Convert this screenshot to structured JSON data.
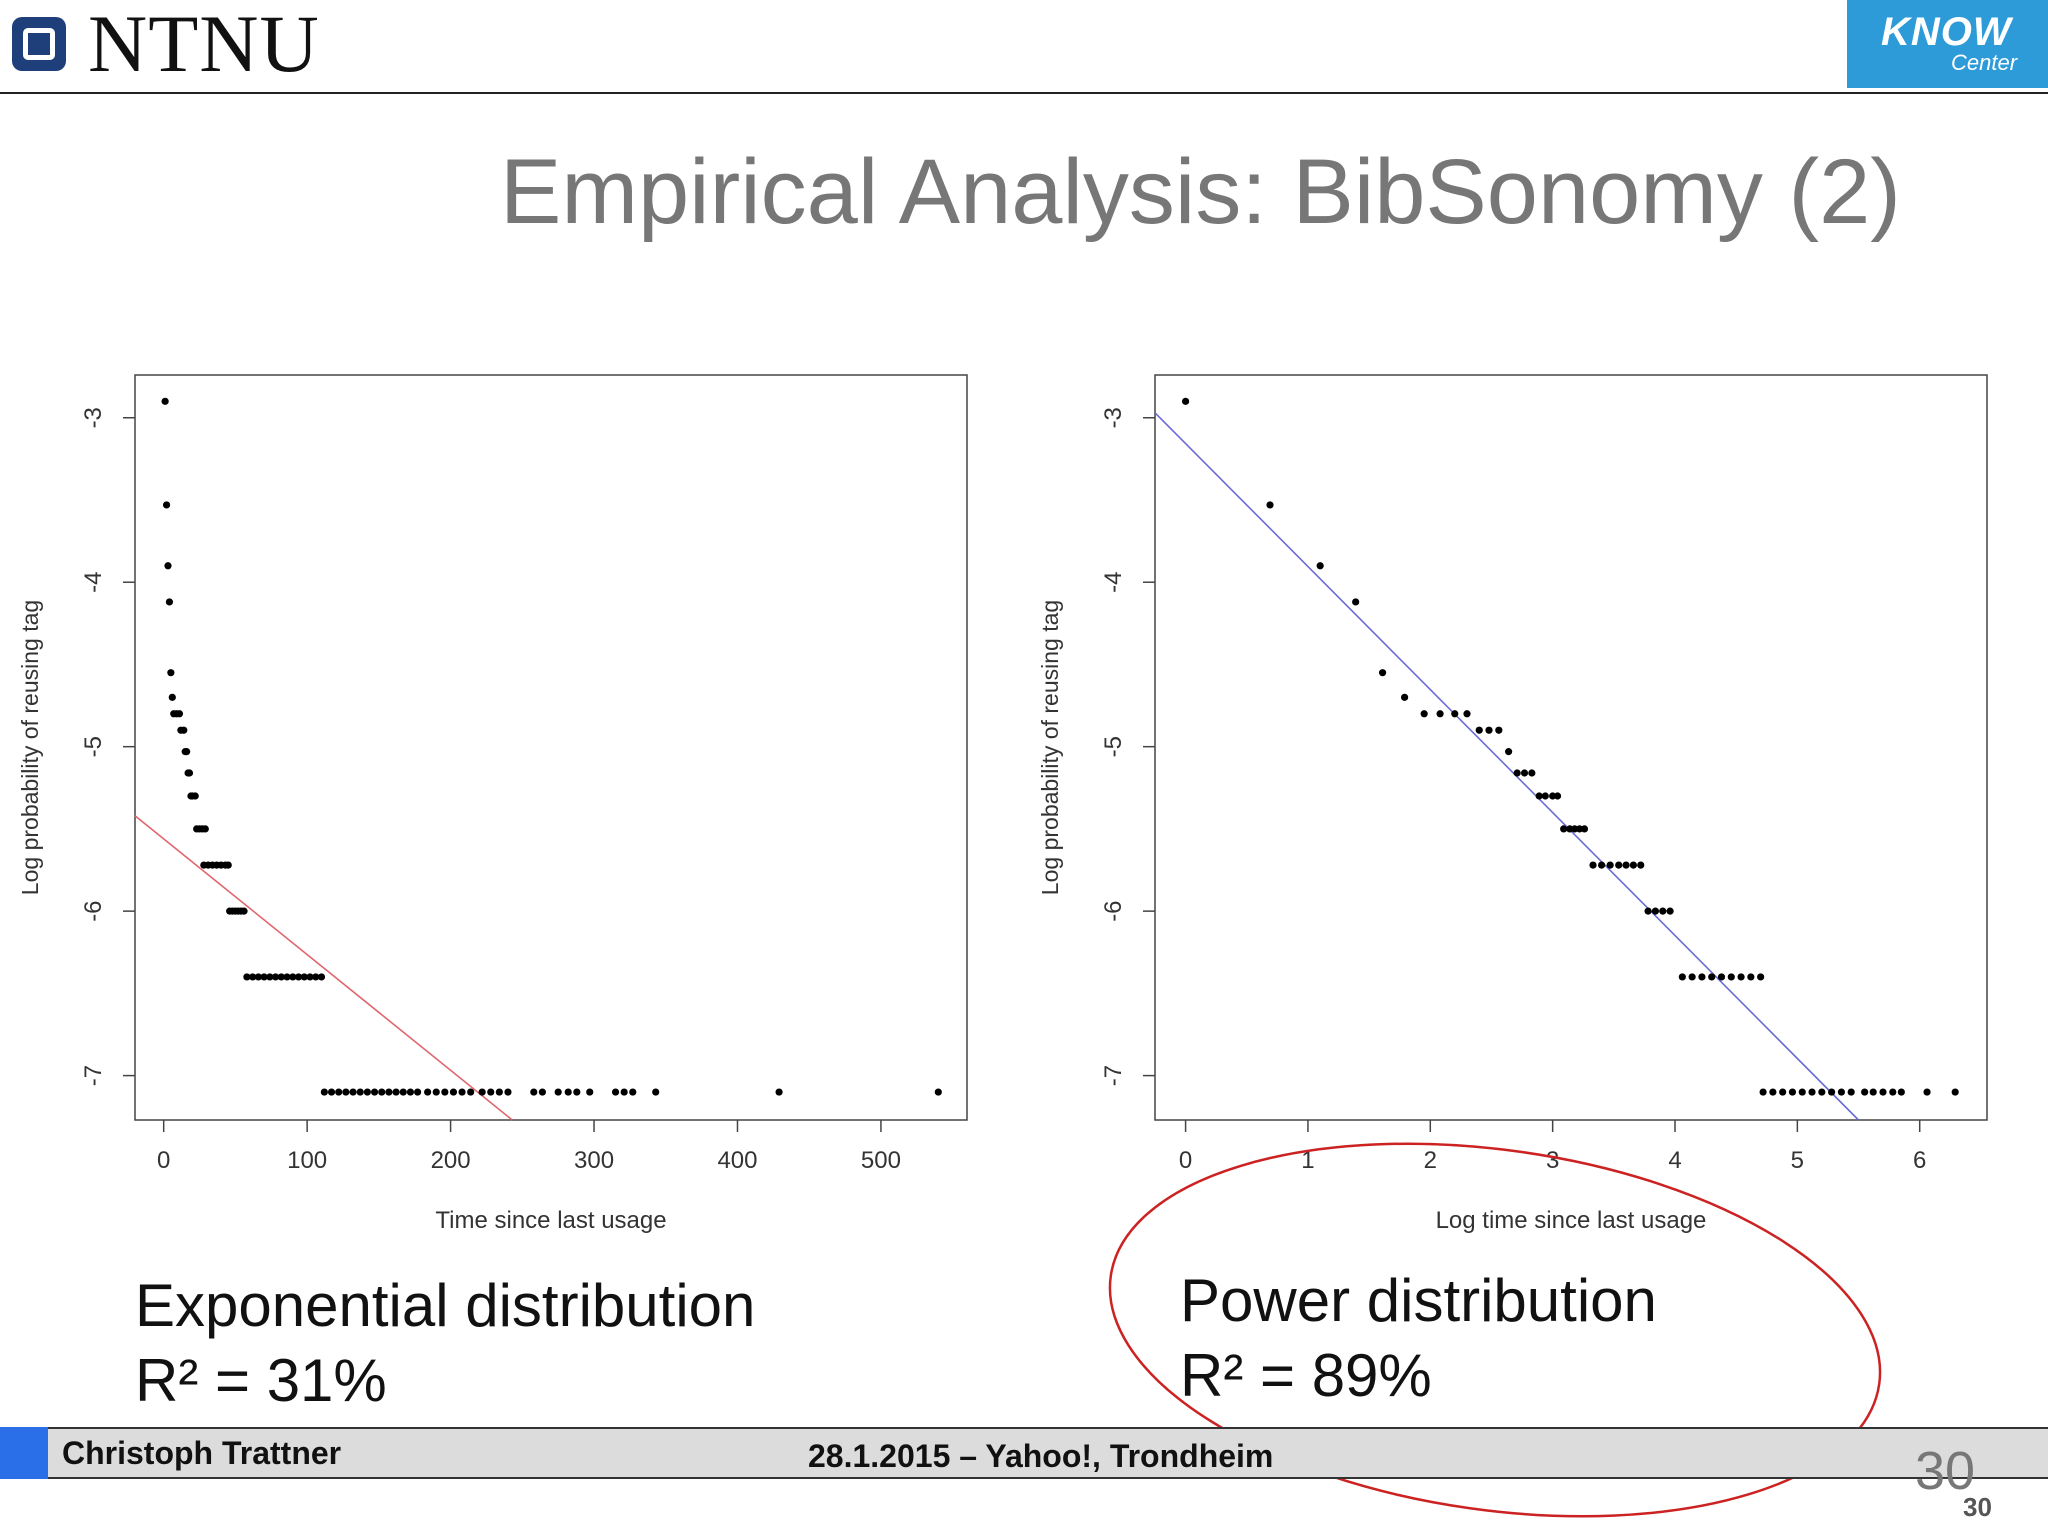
{
  "header": {
    "ntnu_logo_text": "NTNU",
    "know_logo_line1": "KNOW",
    "know_logo_line2": "Center"
  },
  "slide": {
    "title": "Empirical Analysis: BibSonomy (2)"
  },
  "left_caption": {
    "line1": "Exponential distribution",
    "line2": "R² = 31%"
  },
  "right_caption": {
    "line1": "Power distribution",
    "line2": "R² = 89%"
  },
  "footer": {
    "author": "Christoph Trattner",
    "event": "28.1.2015 – Yahoo!, Trondheim",
    "page_big": "30",
    "page_small": "30"
  },
  "colors": {
    "exp_fit": "#e0666e",
    "power_fit": "#6b6bd6",
    "highlight": "#cc2222",
    "points": "#000000"
  },
  "chart_data": [
    {
      "type": "scatter",
      "xlabel": "Time since last usage",
      "ylabel": "Log probability of reusing tag",
      "xlim": [
        -20,
        560
      ],
      "ylim": [
        -7.27,
        -2.74
      ],
      "xticks": [
        0,
        100,
        200,
        300,
        400,
        500
      ],
      "yticks": [
        -3,
        -4,
        -5,
        -6,
        -7
      ],
      "fit_line": {
        "kind": "exponential",
        "x": [
          -20,
          243
        ],
        "y": [
          -5.42,
          -7.27
        ]
      },
      "points": [
        [
          1,
          -2.9
        ],
        [
          2,
          -3.53
        ],
        [
          3,
          -3.9
        ],
        [
          4,
          -4.12
        ],
        [
          5,
          -4.55
        ],
        [
          6,
          -4.7
        ],
        [
          7,
          -4.8
        ],
        [
          9,
          -4.8
        ],
        [
          11,
          -4.8
        ],
        [
          12,
          -4.9
        ],
        [
          14,
          -4.9
        ],
        [
          15,
          -5.03
        ],
        [
          16,
          -5.03
        ],
        [
          17,
          -5.16
        ],
        [
          18,
          -5.16
        ],
        [
          19,
          -5.3
        ],
        [
          20,
          -5.3
        ],
        [
          22,
          -5.3
        ],
        [
          23,
          -5.5
        ],
        [
          25,
          -5.5
        ],
        [
          27,
          -5.5
        ],
        [
          29,
          -5.5
        ],
        [
          28,
          -5.72
        ],
        [
          31,
          -5.72
        ],
        [
          34,
          -5.72
        ],
        [
          37,
          -5.72
        ],
        [
          40,
          -5.72
        ],
        [
          43,
          -5.72
        ],
        [
          45,
          -5.72
        ],
        [
          46,
          -6.0
        ],
        [
          48,
          -6.0
        ],
        [
          50,
          -6.0
        ],
        [
          52,
          -6.0
        ],
        [
          54,
          -6.0
        ],
        [
          56,
          -6.0
        ],
        [
          58,
          -6.4
        ],
        [
          62,
          -6.4
        ],
        [
          66,
          -6.4
        ],
        [
          70,
          -6.4
        ],
        [
          74,
          -6.4
        ],
        [
          78,
          -6.4
        ],
        [
          82,
          -6.4
        ],
        [
          86,
          -6.4
        ],
        [
          90,
          -6.4
        ],
        [
          94,
          -6.4
        ],
        [
          98,
          -6.4
        ],
        [
          102,
          -6.4
        ],
        [
          106,
          -6.4
        ],
        [
          110,
          -6.4
        ],
        [
          112,
          -7.1
        ],
        [
          117,
          -7.1
        ],
        [
          122,
          -7.1
        ],
        [
          127,
          -7.1
        ],
        [
          132,
          -7.1
        ],
        [
          137,
          -7.1
        ],
        [
          142,
          -7.1
        ],
        [
          147,
          -7.1
        ],
        [
          152,
          -7.1
        ],
        [
          157,
          -7.1
        ],
        [
          162,
          -7.1
        ],
        [
          167,
          -7.1
        ],
        [
          172,
          -7.1
        ],
        [
          177,
          -7.1
        ],
        [
          184,
          -7.1
        ],
        [
          190,
          -7.1
        ],
        [
          196,
          -7.1
        ],
        [
          202,
          -7.1
        ],
        [
          208,
          -7.1
        ],
        [
          214,
          -7.1
        ],
        [
          222,
          -7.1
        ],
        [
          228,
          -7.1
        ],
        [
          234,
          -7.1
        ],
        [
          240,
          -7.1
        ],
        [
          258,
          -7.1
        ],
        [
          264,
          -7.1
        ],
        [
          275,
          -7.1
        ],
        [
          282,
          -7.1
        ],
        [
          288,
          -7.1
        ],
        [
          297,
          -7.1
        ],
        [
          315,
          -7.1
        ],
        [
          321,
          -7.1
        ],
        [
          327,
          -7.1
        ],
        [
          343,
          -7.1
        ],
        [
          429,
          -7.1
        ],
        [
          540,
          -7.1
        ]
      ]
    },
    {
      "type": "scatter",
      "xlabel": "Log time since last usage",
      "ylabel": "Log probability of reusing tag",
      "xlim": [
        -0.25,
        6.55
      ],
      "ylim": [
        -7.27,
        -2.74
      ],
      "xticks": [
        0,
        1,
        2,
        3,
        4,
        5,
        6
      ],
      "yticks": [
        -3,
        -4,
        -5,
        -6,
        -7
      ],
      "fit_line": {
        "kind": "power",
        "x": [
          -0.25,
          5.5
        ],
        "y": [
          -2.97,
          -7.27
        ]
      },
      "points": [
        [
          0,
          -2.9
        ],
        [
          0.69,
          -3.53
        ],
        [
          1.1,
          -3.9
        ],
        [
          1.39,
          -4.12
        ],
        [
          1.61,
          -4.55
        ],
        [
          1.79,
          -4.7
        ],
        [
          1.95,
          -4.8
        ],
        [
          2.08,
          -4.8
        ],
        [
          2.2,
          -4.8
        ],
        [
          2.3,
          -4.8
        ],
        [
          2.4,
          -4.9
        ],
        [
          2.48,
          -4.9
        ],
        [
          2.56,
          -4.9
        ],
        [
          2.64,
          -5.03
        ],
        [
          2.71,
          -5.16
        ],
        [
          2.77,
          -5.16
        ],
        [
          2.83,
          -5.16
        ],
        [
          2.89,
          -5.3
        ],
        [
          2.94,
          -5.3
        ],
        [
          3.0,
          -5.3
        ],
        [
          3.04,
          -5.3
        ],
        [
          3.09,
          -5.5
        ],
        [
          3.14,
          -5.5
        ],
        [
          3.18,
          -5.5
        ],
        [
          3.22,
          -5.5
        ],
        [
          3.26,
          -5.5
        ],
        [
          3.33,
          -5.72
        ],
        [
          3.4,
          -5.72
        ],
        [
          3.47,
          -5.72
        ],
        [
          3.54,
          -5.72
        ],
        [
          3.6,
          -5.72
        ],
        [
          3.66,
          -5.72
        ],
        [
          3.72,
          -5.72
        ],
        [
          3.78,
          -6.0
        ],
        [
          3.84,
          -6.0
        ],
        [
          3.9,
          -6.0
        ],
        [
          3.96,
          -6.0
        ],
        [
          4.06,
          -6.4
        ],
        [
          4.14,
          -6.4
        ],
        [
          4.22,
          -6.4
        ],
        [
          4.3,
          -6.4
        ],
        [
          4.38,
          -6.4
        ],
        [
          4.46,
          -6.4
        ],
        [
          4.54,
          -6.4
        ],
        [
          4.62,
          -6.4
        ],
        [
          4.7,
          -6.4
        ],
        [
          4.72,
          -7.1
        ],
        [
          4.8,
          -7.1
        ],
        [
          4.88,
          -7.1
        ],
        [
          4.96,
          -7.1
        ],
        [
          5.04,
          -7.1
        ],
        [
          5.12,
          -7.1
        ],
        [
          5.2,
          -7.1
        ],
        [
          5.28,
          -7.1
        ],
        [
          5.36,
          -7.1
        ],
        [
          5.44,
          -7.1
        ],
        [
          5.55,
          -7.1
        ],
        [
          5.62,
          -7.1
        ],
        [
          5.7,
          -7.1
        ],
        [
          5.78,
          -7.1
        ],
        [
          5.85,
          -7.1
        ],
        [
          6.06,
          -7.1
        ],
        [
          6.29,
          -7.1
        ]
      ]
    }
  ]
}
